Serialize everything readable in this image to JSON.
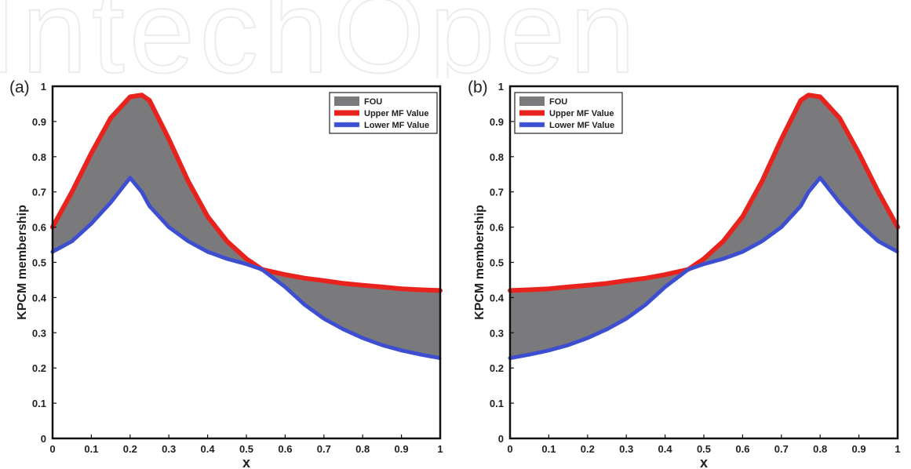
{
  "watermark": "IntechOpen",
  "chart_data": [
    {
      "type": "area",
      "panel_label": "(a)",
      "xlabel": "x",
      "ylabel": "KPCM membership",
      "xlim": [
        0,
        1
      ],
      "ylim": [
        0,
        1
      ],
      "xticks": [
        "0",
        "0.1",
        "0.2",
        "0.3",
        "0.4",
        "0.5",
        "0.6",
        "0.7",
        "0.8",
        "0.9",
        "1"
      ],
      "yticks": [
        "0",
        "0.1",
        "0.2",
        "0.3",
        "0.4",
        "0.5",
        "0.6",
        "0.7",
        "0.8",
        "0.9",
        "1"
      ],
      "grid": false,
      "legend_position": "top-right",
      "legend": [
        "FOU",
        "Upper MF Value",
        "Lower MF Value"
      ],
      "x": [
        0,
        0.05,
        0.1,
        0.15,
        0.2,
        0.23,
        0.25,
        0.3,
        0.35,
        0.4,
        0.45,
        0.5,
        0.54,
        0.6,
        0.65,
        0.7,
        0.75,
        0.8,
        0.85,
        0.9,
        0.95,
        1
      ],
      "series": [
        {
          "name": "Upper MF Value",
          "color": "#e8231e",
          "values": [
            0.6,
            0.7,
            0.81,
            0.91,
            0.97,
            0.975,
            0.96,
            0.85,
            0.73,
            0.63,
            0.56,
            0.51,
            0.48,
            0.465,
            0.455,
            0.448,
            0.44,
            0.435,
            0.43,
            0.425,
            0.422,
            0.42
          ]
        },
        {
          "name": "Lower MF Value",
          "color": "#3d4fd0",
          "values": [
            0.53,
            0.56,
            0.61,
            0.67,
            0.74,
            0.7,
            0.66,
            0.6,
            0.56,
            0.53,
            0.51,
            0.495,
            0.48,
            0.43,
            0.38,
            0.34,
            0.31,
            0.285,
            0.265,
            0.25,
            0.238,
            0.228
          ]
        }
      ],
      "fou_color": "#7a7a7c"
    },
    {
      "type": "area",
      "panel_label": "(b)",
      "xlabel": "x",
      "ylabel": "KPCM membership",
      "xlim": [
        0,
        1
      ],
      "ylim": [
        0,
        1
      ],
      "xticks": [
        "0",
        "0.1",
        "0.2",
        "0.3",
        "0.4",
        "0.5",
        "0.6",
        "0.7",
        "0.8",
        "0.9",
        "1"
      ],
      "yticks": [
        "0",
        "0.1",
        "0.2",
        "0.3",
        "0.4",
        "0.5",
        "0.6",
        "0.7",
        "0.8",
        "0.9",
        "1"
      ],
      "grid": false,
      "legend_position": "top-left",
      "legend": [
        "FOU",
        "Upper MF Value",
        "Lower MF Value"
      ],
      "x": [
        0,
        0.05,
        0.1,
        0.15,
        0.2,
        0.25,
        0.3,
        0.35,
        0.4,
        0.46,
        0.5,
        0.55,
        0.6,
        0.65,
        0.7,
        0.75,
        0.77,
        0.8,
        0.85,
        0.9,
        0.95,
        1
      ],
      "series": [
        {
          "name": "Upper MF Value",
          "color": "#e8231e",
          "values": [
            0.42,
            0.422,
            0.425,
            0.43,
            0.435,
            0.44,
            0.448,
            0.455,
            0.465,
            0.48,
            0.51,
            0.56,
            0.63,
            0.73,
            0.85,
            0.96,
            0.975,
            0.97,
            0.91,
            0.81,
            0.7,
            0.6
          ]
        },
        {
          "name": "Lower MF Value",
          "color": "#3d4fd0",
          "values": [
            0.228,
            0.238,
            0.25,
            0.265,
            0.285,
            0.31,
            0.34,
            0.38,
            0.43,
            0.48,
            0.495,
            0.51,
            0.53,
            0.56,
            0.6,
            0.66,
            0.7,
            0.74,
            0.67,
            0.61,
            0.56,
            0.53
          ]
        }
      ],
      "fou_color": "#7a7a7c"
    }
  ]
}
